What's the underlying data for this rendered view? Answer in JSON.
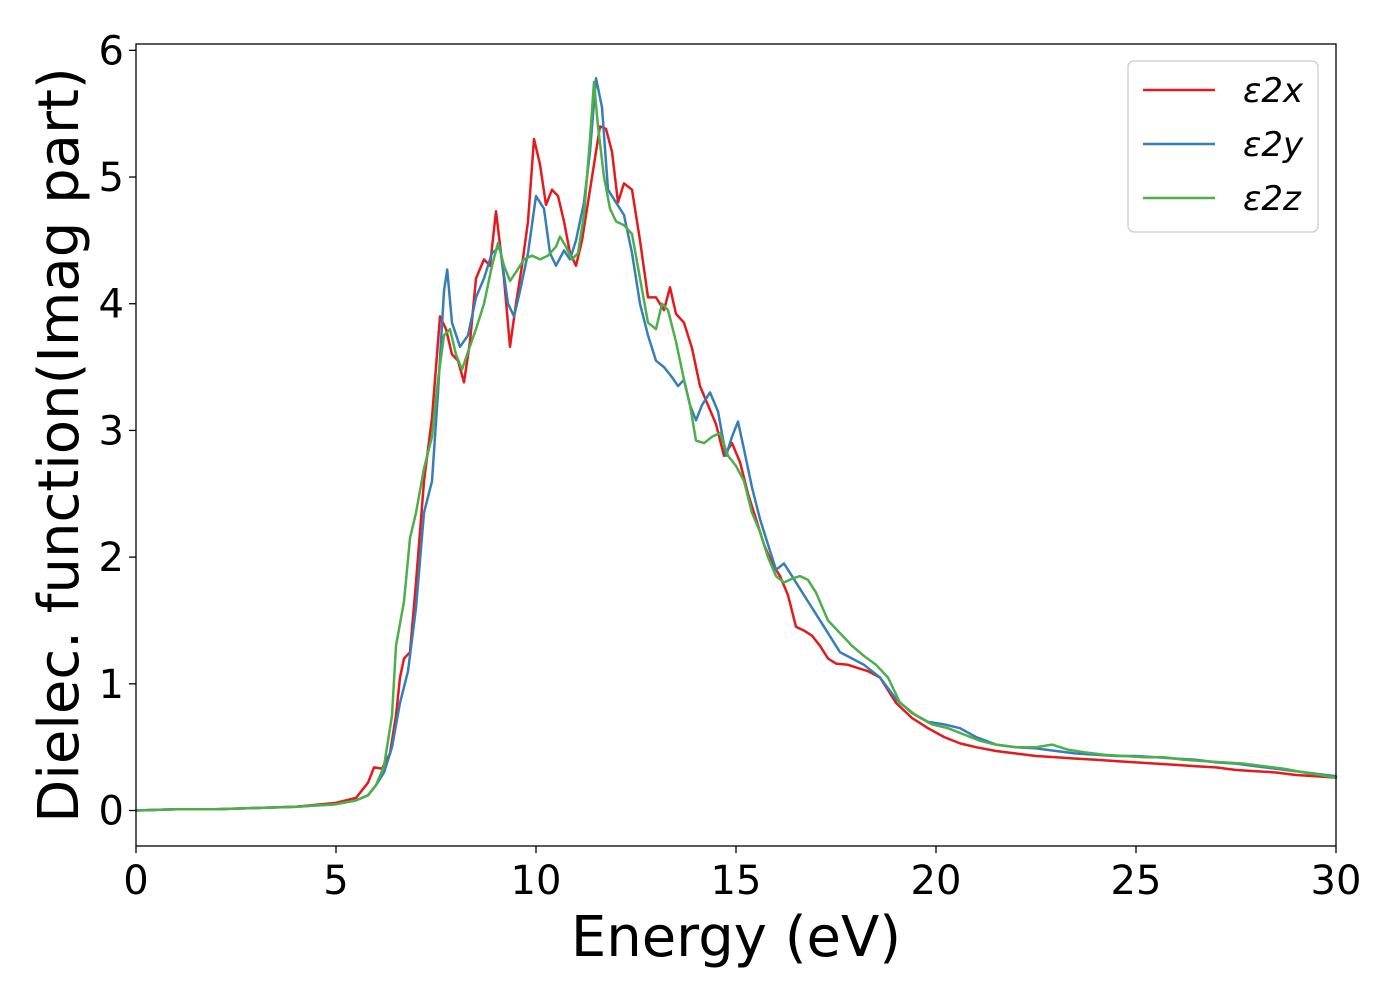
{
  "chart_data": {
    "type": "line",
    "title": "",
    "xlabel": "Energy (eV)",
    "ylabel": "Dielec. function(Imag part)",
    "xlim": [
      0,
      30
    ],
    "ylim": [
      -0.28,
      6.05
    ],
    "xticks": [
      0,
      5,
      10,
      15,
      20,
      25,
      30
    ],
    "yticks": [
      0,
      1,
      2,
      3,
      4,
      5,
      6
    ],
    "grid": false,
    "legend_position": "top-right",
    "series": [
      {
        "name": "ε2x",
        "color": "#e41a1c",
        "points": [
          [
            0,
            0.0
          ],
          [
            1,
            0.01
          ],
          [
            2,
            0.01
          ],
          [
            3,
            0.02
          ],
          [
            4,
            0.03
          ],
          [
            5,
            0.06
          ],
          [
            5.5,
            0.1
          ],
          [
            5.8,
            0.22
          ],
          [
            5.95,
            0.34
          ],
          [
            6.15,
            0.33
          ],
          [
            6.35,
            0.45
          ],
          [
            6.5,
            0.75
          ],
          [
            6.6,
            1.05
          ],
          [
            6.7,
            1.2
          ],
          [
            6.85,
            1.25
          ],
          [
            7.0,
            1.8
          ],
          [
            7.2,
            2.6
          ],
          [
            7.4,
            3.1
          ],
          [
            7.6,
            3.9
          ],
          [
            7.75,
            3.8
          ],
          [
            7.9,
            3.6
          ],
          [
            8.05,
            3.55
          ],
          [
            8.2,
            3.38
          ],
          [
            8.35,
            3.7
          ],
          [
            8.5,
            4.2
          ],
          [
            8.7,
            4.35
          ],
          [
            8.85,
            4.3
          ],
          [
            9.0,
            4.73
          ],
          [
            9.2,
            4.2
          ],
          [
            9.35,
            3.66
          ],
          [
            9.5,
            4.0
          ],
          [
            9.65,
            4.3
          ],
          [
            9.8,
            4.65
          ],
          [
            9.95,
            5.3
          ],
          [
            10.1,
            5.1
          ],
          [
            10.25,
            4.78
          ],
          [
            10.4,
            4.9
          ],
          [
            10.55,
            4.85
          ],
          [
            10.7,
            4.65
          ],
          [
            10.85,
            4.4
          ],
          [
            11.0,
            4.3
          ],
          [
            11.15,
            4.5
          ],
          [
            11.3,
            4.8
          ],
          [
            11.45,
            5.1
          ],
          [
            11.6,
            5.4
          ],
          [
            11.75,
            5.38
          ],
          [
            11.9,
            5.2
          ],
          [
            12.05,
            4.8
          ],
          [
            12.2,
            4.95
          ],
          [
            12.4,
            4.9
          ],
          [
            12.6,
            4.5
          ],
          [
            12.8,
            4.05
          ],
          [
            13.0,
            4.05
          ],
          [
            13.2,
            3.95
          ],
          [
            13.35,
            4.13
          ],
          [
            13.5,
            3.92
          ],
          [
            13.7,
            3.85
          ],
          [
            13.9,
            3.65
          ],
          [
            14.1,
            3.35
          ],
          [
            14.3,
            3.2
          ],
          [
            14.5,
            3.05
          ],
          [
            14.7,
            2.8
          ],
          [
            14.9,
            2.9
          ],
          [
            15.1,
            2.75
          ],
          [
            15.3,
            2.5
          ],
          [
            15.5,
            2.3
          ],
          [
            15.7,
            2.1
          ],
          [
            15.9,
            1.95
          ],
          [
            16.1,
            1.85
          ],
          [
            16.3,
            1.7
          ],
          [
            16.5,
            1.45
          ],
          [
            16.7,
            1.42
          ],
          [
            16.9,
            1.38
          ],
          [
            17.1,
            1.3
          ],
          [
            17.3,
            1.2
          ],
          [
            17.5,
            1.16
          ],
          [
            17.8,
            1.15
          ],
          [
            18.0,
            1.13
          ],
          [
            18.3,
            1.1
          ],
          [
            18.6,
            1.05
          ],
          [
            19.0,
            0.85
          ],
          [
            19.4,
            0.73
          ],
          [
            19.8,
            0.65
          ],
          [
            20.2,
            0.58
          ],
          [
            20.6,
            0.53
          ],
          [
            21.0,
            0.5
          ],
          [
            21.5,
            0.47
          ],
          [
            22.0,
            0.45
          ],
          [
            22.5,
            0.43
          ],
          [
            23.0,
            0.42
          ],
          [
            23.5,
            0.41
          ],
          [
            24.0,
            0.4
          ],
          [
            24.5,
            0.39
          ],
          [
            25.0,
            0.38
          ],
          [
            25.5,
            0.37
          ],
          [
            26.0,
            0.36
          ],
          [
            26.5,
            0.35
          ],
          [
            27.0,
            0.34
          ],
          [
            27.5,
            0.32
          ],
          [
            28.0,
            0.31
          ],
          [
            28.5,
            0.3
          ],
          [
            29.0,
            0.28
          ],
          [
            29.5,
            0.27
          ],
          [
            30.0,
            0.26
          ]
        ]
      },
      {
        "name": "ε2y",
        "color": "#377eb8",
        "points": [
          [
            0,
            0.0
          ],
          [
            1,
            0.01
          ],
          [
            2,
            0.01
          ],
          [
            3,
            0.02
          ],
          [
            4,
            0.03
          ],
          [
            5,
            0.05
          ],
          [
            5.5,
            0.08
          ],
          [
            5.8,
            0.12
          ],
          [
            6.0,
            0.2
          ],
          [
            6.2,
            0.3
          ],
          [
            6.4,
            0.5
          ],
          [
            6.6,
            0.85
          ],
          [
            6.8,
            1.1
          ],
          [
            7.0,
            1.6
          ],
          [
            7.2,
            2.35
          ],
          [
            7.4,
            2.6
          ],
          [
            7.55,
            3.3
          ],
          [
            7.7,
            4.1
          ],
          [
            7.78,
            4.27
          ],
          [
            7.9,
            3.85
          ],
          [
            8.1,
            3.66
          ],
          [
            8.3,
            3.75
          ],
          [
            8.5,
            4.05
          ],
          [
            8.7,
            4.2
          ],
          [
            8.9,
            4.4
          ],
          [
            9.1,
            4.45
          ],
          [
            9.3,
            4.0
          ],
          [
            9.45,
            3.9
          ],
          [
            9.6,
            4.1
          ],
          [
            9.8,
            4.4
          ],
          [
            10.0,
            4.85
          ],
          [
            10.2,
            4.75
          ],
          [
            10.35,
            4.4
          ],
          [
            10.5,
            4.3
          ],
          [
            10.7,
            4.42
          ],
          [
            10.85,
            4.35
          ],
          [
            11.0,
            4.5
          ],
          [
            11.2,
            4.8
          ],
          [
            11.35,
            5.2
          ],
          [
            11.5,
            5.78
          ],
          [
            11.65,
            5.55
          ],
          [
            11.8,
            4.9
          ],
          [
            12.0,
            4.8
          ],
          [
            12.2,
            4.7
          ],
          [
            12.4,
            4.4
          ],
          [
            12.6,
            4.0
          ],
          [
            12.8,
            3.75
          ],
          [
            13.0,
            3.55
          ],
          [
            13.2,
            3.5
          ],
          [
            13.4,
            3.42
          ],
          [
            13.55,
            3.35
          ],
          [
            13.7,
            3.4
          ],
          [
            13.85,
            3.2
          ],
          [
            14.0,
            3.08
          ],
          [
            14.15,
            3.2
          ],
          [
            14.35,
            3.3
          ],
          [
            14.55,
            3.15
          ],
          [
            14.75,
            2.8
          ],
          [
            14.9,
            2.95
          ],
          [
            15.05,
            3.07
          ],
          [
            15.2,
            2.85
          ],
          [
            15.4,
            2.55
          ],
          [
            15.6,
            2.3
          ],
          [
            15.8,
            2.1
          ],
          [
            16.0,
            1.9
          ],
          [
            16.2,
            1.95
          ],
          [
            16.4,
            1.85
          ],
          [
            16.6,
            1.75
          ],
          [
            16.8,
            1.65
          ],
          [
            17.0,
            1.55
          ],
          [
            17.3,
            1.4
          ],
          [
            17.6,
            1.25
          ],
          [
            17.9,
            1.2
          ],
          [
            18.2,
            1.15
          ],
          [
            18.6,
            1.05
          ],
          [
            19.0,
            0.88
          ],
          [
            19.4,
            0.77
          ],
          [
            19.8,
            0.7
          ],
          [
            20.2,
            0.68
          ],
          [
            20.6,
            0.65
          ],
          [
            21.0,
            0.58
          ],
          [
            21.5,
            0.52
          ],
          [
            22.0,
            0.5
          ],
          [
            22.5,
            0.49
          ],
          [
            23.0,
            0.47
          ],
          [
            23.5,
            0.45
          ],
          [
            24.0,
            0.44
          ],
          [
            24.5,
            0.43
          ],
          [
            25.0,
            0.43
          ],
          [
            25.5,
            0.42
          ],
          [
            26.0,
            0.41
          ],
          [
            26.5,
            0.4
          ],
          [
            27.0,
            0.38
          ],
          [
            27.5,
            0.37
          ],
          [
            28.0,
            0.35
          ],
          [
            28.5,
            0.33
          ],
          [
            29.0,
            0.31
          ],
          [
            29.5,
            0.29
          ],
          [
            30.0,
            0.27
          ]
        ]
      },
      {
        "name": "ε2z",
        "color": "#4daf4a",
        "points": [
          [
            0,
            0.0
          ],
          [
            1,
            0.01
          ],
          [
            2,
            0.01
          ],
          [
            3,
            0.02
          ],
          [
            4,
            0.03
          ],
          [
            5,
            0.05
          ],
          [
            5.5,
            0.08
          ],
          [
            5.8,
            0.12
          ],
          [
            6.0,
            0.2
          ],
          [
            6.2,
            0.35
          ],
          [
            6.4,
            0.75
          ],
          [
            6.5,
            1.3
          ],
          [
            6.7,
            1.65
          ],
          [
            6.85,
            2.15
          ],
          [
            7.0,
            2.35
          ],
          [
            7.2,
            2.7
          ],
          [
            7.4,
            2.95
          ],
          [
            7.55,
            3.4
          ],
          [
            7.7,
            3.75
          ],
          [
            7.85,
            3.8
          ],
          [
            8.0,
            3.6
          ],
          [
            8.15,
            3.48
          ],
          [
            8.3,
            3.62
          ],
          [
            8.5,
            3.8
          ],
          [
            8.7,
            4.0
          ],
          [
            8.9,
            4.3
          ],
          [
            9.05,
            4.48
          ],
          [
            9.2,
            4.3
          ],
          [
            9.35,
            4.18
          ],
          [
            9.5,
            4.25
          ],
          [
            9.7,
            4.35
          ],
          [
            9.9,
            4.38
          ],
          [
            10.1,
            4.35
          ],
          [
            10.3,
            4.38
          ],
          [
            10.5,
            4.45
          ],
          [
            10.6,
            4.53
          ],
          [
            10.75,
            4.45
          ],
          [
            10.9,
            4.35
          ],
          [
            11.05,
            4.4
          ],
          [
            11.2,
            4.7
          ],
          [
            11.35,
            5.3
          ],
          [
            11.45,
            5.75
          ],
          [
            11.55,
            5.4
          ],
          [
            11.7,
            5.0
          ],
          [
            11.85,
            4.75
          ],
          [
            12.0,
            4.65
          ],
          [
            12.2,
            4.62
          ],
          [
            12.4,
            4.55
          ],
          [
            12.6,
            4.2
          ],
          [
            12.8,
            3.85
          ],
          [
            13.0,
            3.8
          ],
          [
            13.15,
            4.0
          ],
          [
            13.3,
            3.95
          ],
          [
            13.5,
            3.7
          ],
          [
            13.7,
            3.4
          ],
          [
            13.85,
            3.2
          ],
          [
            14.0,
            2.92
          ],
          [
            14.2,
            2.9
          ],
          [
            14.4,
            2.95
          ],
          [
            14.6,
            2.98
          ],
          [
            14.8,
            2.8
          ],
          [
            15.0,
            2.72
          ],
          [
            15.2,
            2.6
          ],
          [
            15.4,
            2.35
          ],
          [
            15.6,
            2.2
          ],
          [
            15.8,
            2.0
          ],
          [
            16.0,
            1.85
          ],
          [
            16.2,
            1.8
          ],
          [
            16.4,
            1.83
          ],
          [
            16.6,
            1.85
          ],
          [
            16.8,
            1.82
          ],
          [
            17.0,
            1.72
          ],
          [
            17.3,
            1.5
          ],
          [
            17.6,
            1.4
          ],
          [
            17.9,
            1.3
          ],
          [
            18.2,
            1.22
          ],
          [
            18.5,
            1.15
          ],
          [
            18.8,
            1.05
          ],
          [
            19.1,
            0.85
          ],
          [
            19.5,
            0.75
          ],
          [
            19.9,
            0.68
          ],
          [
            20.3,
            0.65
          ],
          [
            20.7,
            0.6
          ],
          [
            21.1,
            0.55
          ],
          [
            21.5,
            0.52
          ],
          [
            22.0,
            0.5
          ],
          [
            22.5,
            0.5
          ],
          [
            22.9,
            0.52
          ],
          [
            23.3,
            0.48
          ],
          [
            23.7,
            0.46
          ],
          [
            24.2,
            0.44
          ],
          [
            24.7,
            0.43
          ],
          [
            25.2,
            0.42
          ],
          [
            25.7,
            0.42
          ],
          [
            26.2,
            0.4
          ],
          [
            26.7,
            0.39
          ],
          [
            27.2,
            0.38
          ],
          [
            27.7,
            0.37
          ],
          [
            28.2,
            0.35
          ],
          [
            28.7,
            0.33
          ],
          [
            29.2,
            0.3
          ],
          [
            29.6,
            0.28
          ],
          [
            30.0,
            0.26
          ]
        ]
      }
    ]
  }
}
